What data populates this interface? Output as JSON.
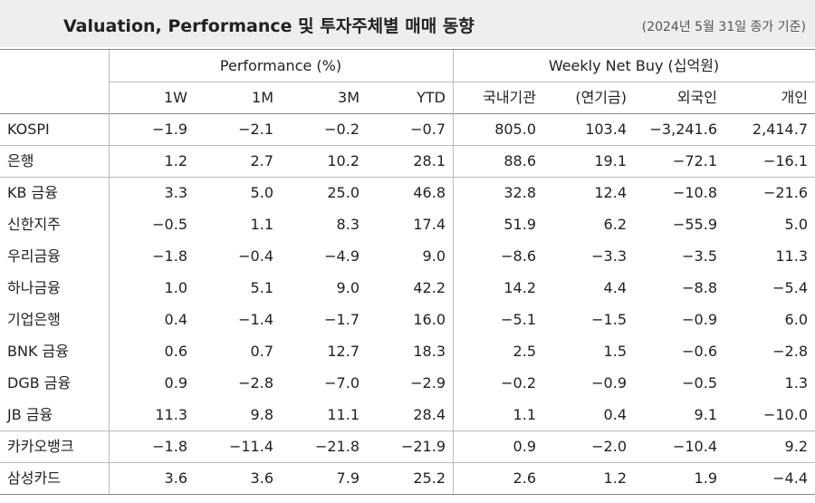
{
  "header": {
    "title": "Valuation, Performance 및 투자주체별 매매 동향",
    "note": "(2024년 5월 31일 종가 기준)"
  },
  "table": {
    "groups": [
      "Performance (%)",
      "Weekly Net Buy (십억원)"
    ],
    "columns": [
      "1W",
      "1M",
      "3M",
      "YTD",
      "국내기관",
      "(연기금)",
      "외국인",
      "개인"
    ],
    "rows": [
      [
        "KOSPI",
        "−1.9",
        "−2.1",
        "−0.2",
        "−0.7",
        "805.0",
        "103.4",
        "−3,241.6",
        "2,414.7"
      ],
      [
        "은행",
        "1.2",
        "2.7",
        "10.2",
        "28.1",
        "88.6",
        "19.1",
        "−72.1",
        "−16.1"
      ],
      [
        "KB 금융",
        "3.3",
        "5.0",
        "25.0",
        "46.8",
        "32.8",
        "12.4",
        "−10.8",
        "−21.6"
      ],
      [
        "신한지주",
        "−0.5",
        "1.1",
        "8.3",
        "17.4",
        "51.9",
        "6.2",
        "−55.9",
        "5.0"
      ],
      [
        "우리금융",
        "−1.8",
        "−0.4",
        "−4.9",
        "9.0",
        "−8.6",
        "−3.3",
        "−3.5",
        "11.3"
      ],
      [
        "하나금융",
        "1.0",
        "5.1",
        "9.0",
        "42.2",
        "14.2",
        "4.4",
        "−8.8",
        "−5.4"
      ],
      [
        "기업은행",
        "0.4",
        "−1.4",
        "−1.7",
        "16.0",
        "−5.1",
        "−1.5",
        "−0.9",
        "6.0"
      ],
      [
        "BNK 금융",
        "0.6",
        "0.7",
        "12.7",
        "18.3",
        "2.5",
        "1.5",
        "−0.6",
        "−2.8"
      ],
      [
        "DGB 금융",
        "0.9",
        "−2.8",
        "−7.0",
        "−2.9",
        "−0.2",
        "−0.9",
        "−0.5",
        "1.3"
      ],
      [
        "JB 금융",
        "11.3",
        "9.8",
        "11.1",
        "28.4",
        "1.1",
        "0.4",
        "9.1",
        "−10.0"
      ],
      [
        "카카오뱅크",
        "−1.8",
        "−11.4",
        "−21.8",
        "−21.9",
        "0.9",
        "−2.0",
        "−10.4",
        "9.2"
      ],
      [
        "삼성카드",
        "3.6",
        "3.6",
        "7.9",
        "25.2",
        "2.6",
        "1.2",
        "1.9",
        "−4.4"
      ]
    ]
  }
}
